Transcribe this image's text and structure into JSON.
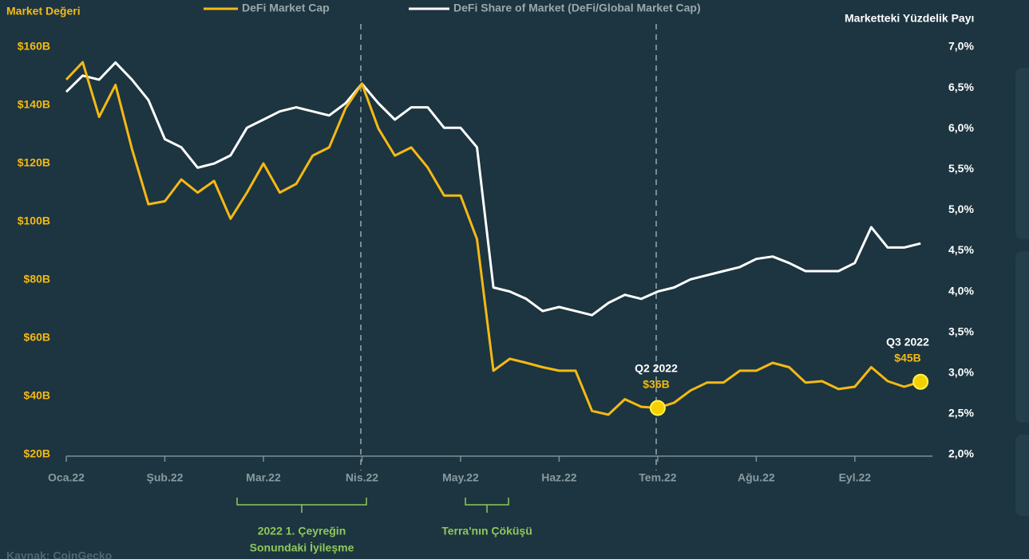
{
  "chart_data": {
    "type": "line",
    "y_label": "Market Değeri",
    "y2_label": "Marketteki Yüzdelik Payı",
    "categories": [
      "Oca.22",
      null,
      null,
      null,
      null,
      null,
      "Şub.22",
      null,
      null,
      null,
      null,
      null,
      "Mar.22",
      null,
      null,
      null,
      null,
      null,
      "Nis.22",
      null,
      null,
      null,
      null,
      null,
      "May.22",
      null,
      null,
      null,
      null,
      null,
      "Haz.22",
      null,
      null,
      null,
      null,
      null,
      "Tem.22",
      null,
      null,
      null,
      null,
      null,
      "Ağu.22",
      null,
      null,
      null,
      null,
      null,
      "Eyl.22",
      null,
      null,
      null,
      null
    ],
    "series": [
      {
        "name": "DeFi Market Cap",
        "color": "#f5b914",
        "axis": "y",
        "values": [
          148.8,
          154.8,
          136,
          147,
          125,
          106,
          107,
          114.5,
          110,
          114,
          101,
          110,
          120,
          110,
          113,
          122.7,
          125.5,
          139,
          147.4,
          132,
          122.7,
          125.5,
          118.6,
          109,
          109,
          94,
          48.8,
          52.9,
          51.5,
          50,
          48.8,
          48.8,
          35,
          33.7,
          39,
          36.4,
          36,
          37.8,
          42,
          44.7,
          44.7,
          48.8,
          48.8,
          51.5,
          50,
          44.7,
          45.2,
          42.5,
          43.3,
          50,
          45.2,
          43.3,
          45
        ]
      },
      {
        "name": "DeFi Share of Market (DeFi/Global Market Cap)",
        "color": "#ffffff",
        "axis": "y2",
        "values": [
          6.45,
          6.65,
          6.6,
          6.81,
          6.6,
          6.35,
          5.87,
          5.77,
          5.52,
          5.57,
          5.67,
          6.01,
          6.11,
          6.21,
          6.26,
          6.21,
          6.16,
          6.31,
          6.55,
          6.31,
          6.11,
          6.26,
          6.26,
          6.01,
          6.01,
          5.77,
          4.05,
          4.0,
          3.91,
          3.76,
          3.81,
          3.76,
          3.71,
          3.86,
          3.96,
          3.91,
          4.0,
          4.05,
          4.15,
          4.2,
          4.25,
          4.3,
          4.4,
          4.43,
          4.35,
          4.25,
          4.25,
          4.25,
          4.35,
          4.79,
          4.54,
          4.54,
          4.59
        ]
      }
    ],
    "ylim": [
      20,
      160
    ],
    "yticks": [
      {
        "value": 20,
        "label": "$20B"
      },
      {
        "value": 40,
        "label": "$40B"
      },
      {
        "value": 60,
        "label": "$60B"
      },
      {
        "value": 80,
        "label": "$80B"
      },
      {
        "value": 100,
        "label": "$100B"
      },
      {
        "value": 120,
        "label": "$120B"
      },
      {
        "value": 140,
        "label": "$140B"
      },
      {
        "value": 160,
        "label": "$160B"
      }
    ],
    "y2lim": [
      2,
      7
    ],
    "y2ticks": [
      {
        "value": 2,
        "label": "2,0%"
      },
      {
        "value": 2.5,
        "label": "2,5%"
      },
      {
        "value": 3,
        "label": "3,0%"
      },
      {
        "value": 3.5,
        "label": "3,5%"
      },
      {
        "value": 4,
        "label": "4,0%"
      },
      {
        "value": 4.5,
        "label": "4,5%"
      },
      {
        "value": 5,
        "label": "5,0%"
      },
      {
        "value": 5.5,
        "label": "5,5%"
      },
      {
        "value": 6,
        "label": "6,0%"
      },
      {
        "value": 6.5,
        "label": "6,5%"
      },
      {
        "value": 7,
        "label": "7,0%"
      }
    ],
    "annotations": {
      "q2_title": "Q2 2022",
      "q2_value": "$36B",
      "q3_title": "Q3 2022",
      "q3_value": "$45B",
      "q1_recovery": [
        "2022 1. Çeyreğin",
        "Sonundaki İyileşme"
      ],
      "terra": "Terra'nın Çöküşü"
    },
    "source": "Kaynak: CoinGecko"
  }
}
